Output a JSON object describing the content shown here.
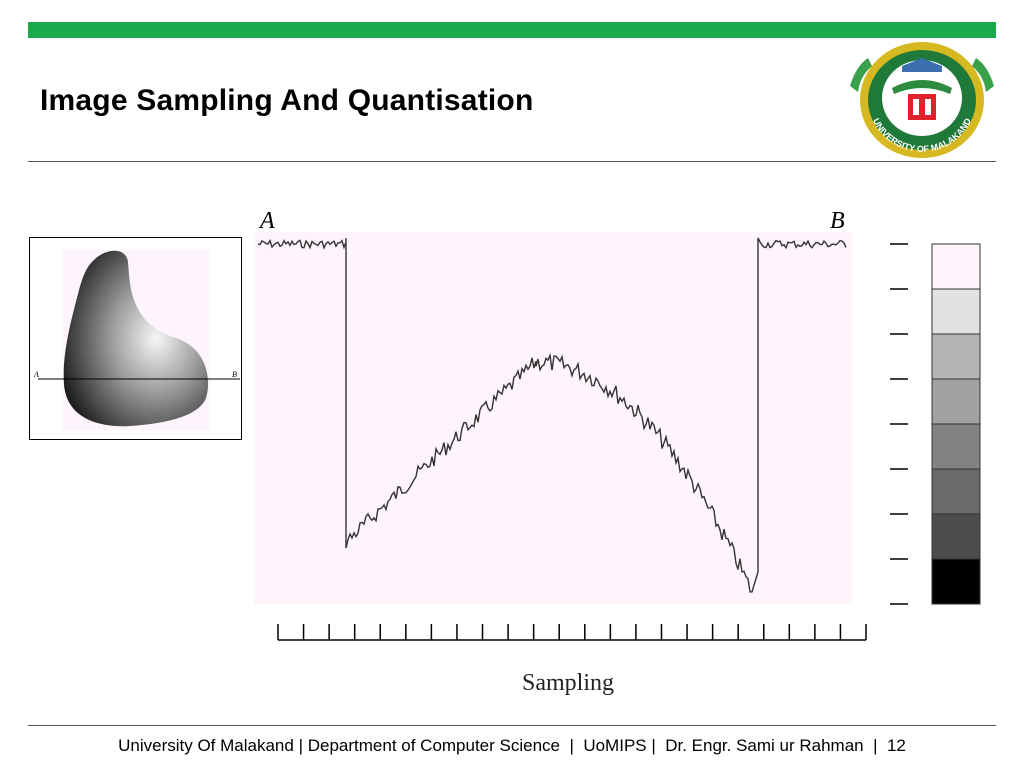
{
  "slide": {
    "title": "Image Sampling And Quantisation",
    "accent_color": "#1aa94b"
  },
  "logo": {
    "seal_text": "UNIVERSITY OF MALAKAND",
    "icon": "university-seal"
  },
  "inset": {
    "label_a": "A",
    "label_b": "B"
  },
  "figure": {
    "label_a": "A",
    "label_b": "B",
    "sampling_label": "Sampling",
    "sample_count": 24,
    "quantization_levels": 8,
    "gray_levels": [
      "#fdf4fc",
      "#e2e2e2",
      "#b4b4b4",
      "#a2a2a2",
      "#828282",
      "#6a6a6a",
      "#4c4c4c",
      "#000000"
    ]
  },
  "footer": {
    "university": "University Of Malakand",
    "sep1": " | ",
    "department": "Department of Computer Science",
    "sep2": "  |  ",
    "program": "UoMIPS",
    "sep3": " |  ",
    "author": "Dr. Engr. Sami ur Rahman",
    "sep4": "  |  ",
    "page": "12"
  }
}
